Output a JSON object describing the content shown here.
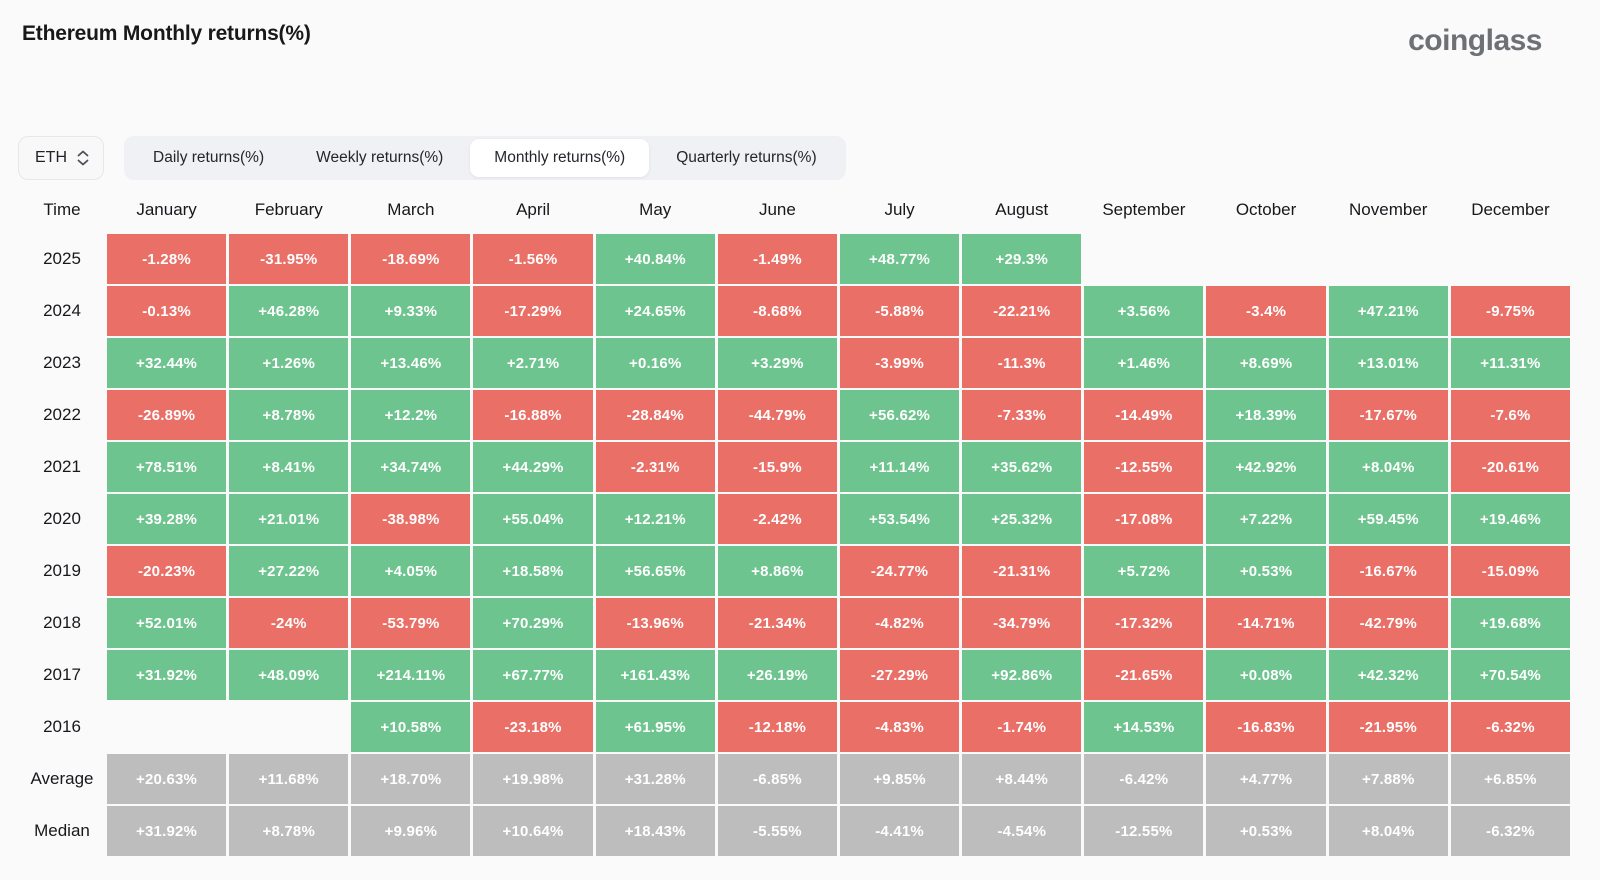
{
  "header": {
    "title": "Ethereum Monthly returns(%)",
    "logo_text": "coinglass"
  },
  "controls": {
    "symbol_select": {
      "value": "ETH",
      "icon": "up-down-chevron-icon"
    },
    "tabs": [
      {
        "label": "Daily returns(%)",
        "active": false
      },
      {
        "label": "Weekly returns(%)",
        "active": false
      },
      {
        "label": "Monthly returns(%)",
        "active": true
      },
      {
        "label": "Quarterly returns(%)",
        "active": false
      }
    ]
  },
  "colors": {
    "positive": "#6ec48f",
    "negative": "#ea6f67",
    "neutral": "#bdbdbd"
  },
  "table": {
    "corner_label": "Time",
    "months": [
      "January",
      "February",
      "March",
      "April",
      "May",
      "June",
      "July",
      "August",
      "September",
      "October",
      "November",
      "December"
    ],
    "rows": [
      {
        "label": "2025",
        "type": "year",
        "cells": [
          "-1.28%",
          "-31.95%",
          "-18.69%",
          "-1.56%",
          "+40.84%",
          "-1.49%",
          "+48.77%",
          "+29.3%",
          "",
          "",
          "",
          ""
        ]
      },
      {
        "label": "2024",
        "type": "year",
        "cells": [
          "-0.13%",
          "+46.28%",
          "+9.33%",
          "-17.29%",
          "+24.65%",
          "-8.68%",
          "-5.88%",
          "-22.21%",
          "+3.56%",
          "-3.4%",
          "+47.21%",
          "-9.75%"
        ]
      },
      {
        "label": "2023",
        "type": "year",
        "cells": [
          "+32.44%",
          "+1.26%",
          "+13.46%",
          "+2.71%",
          "+0.16%",
          "+3.29%",
          "-3.99%",
          "-11.3%",
          "+1.46%",
          "+8.69%",
          "+13.01%",
          "+11.31%"
        ]
      },
      {
        "label": "2022",
        "type": "year",
        "cells": [
          "-26.89%",
          "+8.78%",
          "+12.2%",
          "-16.88%",
          "-28.84%",
          "-44.79%",
          "+56.62%",
          "-7.33%",
          "-14.49%",
          "+18.39%",
          "-17.67%",
          "-7.6%"
        ]
      },
      {
        "label": "2021",
        "type": "year",
        "cells": [
          "+78.51%",
          "+8.41%",
          "+34.74%",
          "+44.29%",
          "-2.31%",
          "-15.9%",
          "+11.14%",
          "+35.62%",
          "-12.55%",
          "+42.92%",
          "+8.04%",
          "-20.61%"
        ]
      },
      {
        "label": "2020",
        "type": "year",
        "cells": [
          "+39.28%",
          "+21.01%",
          "-38.98%",
          "+55.04%",
          "+12.21%",
          "-2.42%",
          "+53.54%",
          "+25.32%",
          "-17.08%",
          "+7.22%",
          "+59.45%",
          "+19.46%"
        ]
      },
      {
        "label": "2019",
        "type": "year",
        "cells": [
          "-20.23%",
          "+27.22%",
          "+4.05%",
          "+18.58%",
          "+56.65%",
          "+8.86%",
          "-24.77%",
          "-21.31%",
          "+5.72%",
          "+0.53%",
          "-16.67%",
          "-15.09%"
        ]
      },
      {
        "label": "2018",
        "type": "year",
        "cells": [
          "+52.01%",
          "-24%",
          "-53.79%",
          "+70.29%",
          "-13.96%",
          "-21.34%",
          "-4.82%",
          "-34.79%",
          "-17.32%",
          "-14.71%",
          "-42.79%",
          "+19.68%"
        ]
      },
      {
        "label": "2017",
        "type": "year",
        "cells": [
          "+31.92%",
          "+48.09%",
          "+214.11%",
          "+67.77%",
          "+161.43%",
          "+26.19%",
          "-27.29%",
          "+92.86%",
          "-21.65%",
          "+0.08%",
          "+42.32%",
          "+70.54%"
        ]
      },
      {
        "label": "2016",
        "type": "year",
        "cells": [
          "",
          "",
          "+10.58%",
          "-23.18%",
          "+61.95%",
          "-12.18%",
          "-4.83%",
          "-1.74%",
          "+14.53%",
          "-16.83%",
          "-21.95%",
          "-6.32%"
        ]
      },
      {
        "label": "Average",
        "type": "summary",
        "cells": [
          "+20.63%",
          "+11.68%",
          "+18.70%",
          "+19.98%",
          "+31.28%",
          "-6.85%",
          "+9.85%",
          "+8.44%",
          "-6.42%",
          "+4.77%",
          "+7.88%",
          "+6.85%"
        ]
      },
      {
        "label": "Median",
        "type": "summary",
        "cells": [
          "+31.92%",
          "+8.78%",
          "+9.96%",
          "+10.64%",
          "+18.43%",
          "-5.55%",
          "-4.41%",
          "-4.54%",
          "-12.55%",
          "+0.53%",
          "+8.04%",
          "-6.32%"
        ]
      }
    ]
  },
  "chart_data": {
    "type": "heatmap",
    "title": "Ethereum Monthly returns(%)",
    "unit": "%",
    "x_categories": [
      "January",
      "February",
      "March",
      "April",
      "May",
      "June",
      "July",
      "August",
      "September",
      "October",
      "November",
      "December"
    ],
    "y_categories": [
      "2025",
      "2024",
      "2023",
      "2022",
      "2021",
      "2020",
      "2019",
      "2018",
      "2017",
      "2016",
      "Average",
      "Median"
    ],
    "series": [
      {
        "name": "2025",
        "values": [
          -1.28,
          -31.95,
          -18.69,
          -1.56,
          40.84,
          -1.49,
          48.77,
          29.3,
          null,
          null,
          null,
          null
        ]
      },
      {
        "name": "2024",
        "values": [
          -0.13,
          46.28,
          9.33,
          -17.29,
          24.65,
          -8.68,
          -5.88,
          -22.21,
          3.56,
          -3.4,
          47.21,
          -9.75
        ]
      },
      {
        "name": "2023",
        "values": [
          32.44,
          1.26,
          13.46,
          2.71,
          0.16,
          3.29,
          -3.99,
          -11.3,
          1.46,
          8.69,
          13.01,
          11.31
        ]
      },
      {
        "name": "2022",
        "values": [
          -26.89,
          8.78,
          12.2,
          -16.88,
          -28.84,
          -44.79,
          56.62,
          -7.33,
          -14.49,
          18.39,
          -17.67,
          -7.6
        ]
      },
      {
        "name": "2021",
        "values": [
          78.51,
          8.41,
          34.74,
          44.29,
          -2.31,
          -15.9,
          11.14,
          35.62,
          -12.55,
          42.92,
          8.04,
          -20.61
        ]
      },
      {
        "name": "2020",
        "values": [
          39.28,
          21.01,
          -38.98,
          55.04,
          12.21,
          -2.42,
          53.54,
          25.32,
          -17.08,
          7.22,
          59.45,
          19.46
        ]
      },
      {
        "name": "2019",
        "values": [
          -20.23,
          27.22,
          4.05,
          18.58,
          56.65,
          8.86,
          -24.77,
          -21.31,
          5.72,
          0.53,
          -16.67,
          -15.09
        ]
      },
      {
        "name": "2018",
        "values": [
          52.01,
          -24,
          -53.79,
          70.29,
          -13.96,
          -21.34,
          -4.82,
          -34.79,
          -17.32,
          -14.71,
          -42.79,
          19.68
        ]
      },
      {
        "name": "2017",
        "values": [
          31.92,
          48.09,
          214.11,
          67.77,
          161.43,
          26.19,
          -27.29,
          92.86,
          -21.65,
          0.08,
          42.32,
          70.54
        ]
      },
      {
        "name": "2016",
        "values": [
          null,
          null,
          10.58,
          -23.18,
          61.95,
          -12.18,
          -4.83,
          -1.74,
          14.53,
          -16.83,
          -21.95,
          -6.32
        ]
      },
      {
        "name": "Average",
        "values": [
          20.63,
          11.68,
          18.7,
          19.98,
          31.28,
          -6.85,
          9.85,
          8.44,
          -6.42,
          4.77,
          7.88,
          6.85
        ]
      },
      {
        "name": "Median",
        "values": [
          31.92,
          8.78,
          9.96,
          10.64,
          18.43,
          -5.55,
          -4.41,
          -4.54,
          -12.55,
          0.53,
          8.04,
          -6.32
        ]
      }
    ],
    "color_coding": {
      "positive": "green",
      "negative": "red",
      "summary_rows": "gray"
    },
    "legend": "none",
    "grid": "off"
  }
}
